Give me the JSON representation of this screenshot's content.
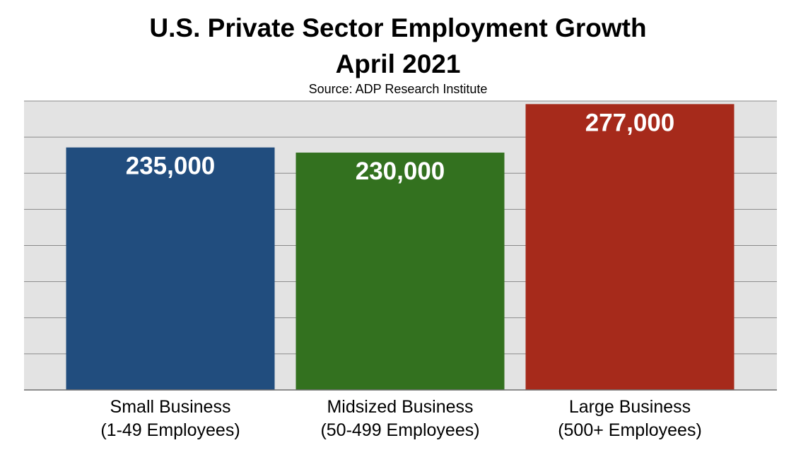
{
  "chart_data": {
    "type": "bar",
    "title": [
      "U.S. Private Sector Employment Growth",
      "April 2021"
    ],
    "subtitle": "Source: ADP Research Institute",
    "categories": [
      [
        "Small Business",
        "(1-49 Employees)"
      ],
      [
        "Midsized Business",
        "(50-499 Employees)"
      ],
      [
        "Large Business",
        "(500+ Employees)"
      ]
    ],
    "values": [
      235000,
      230000,
      277000
    ],
    "value_labels": [
      "235,000",
      "230,000",
      "277,000"
    ],
    "colors": [
      "#214d7e",
      "#33711f",
      "#a62a1b"
    ],
    "ylim": [
      0,
      280000
    ],
    "grid": true,
    "xlabel": "",
    "ylabel": ""
  }
}
